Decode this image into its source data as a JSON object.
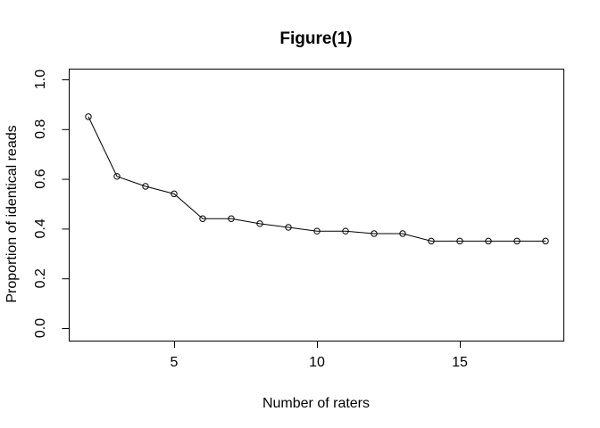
{
  "figure": {
    "background": "#ffffff"
  },
  "chart_data": {
    "type": "line",
    "title": "Figure(1)",
    "xlabel": "Number of raters",
    "ylabel": "Proportion of identical reads",
    "x": [
      2,
      3,
      4,
      5,
      6,
      7,
      8,
      9,
      10,
      11,
      12,
      13,
      14,
      15,
      16,
      17,
      18
    ],
    "y": [
      0.85,
      0.61,
      0.57,
      0.54,
      0.44,
      0.44,
      0.42,
      0.405,
      0.39,
      0.39,
      0.38,
      0.38,
      0.35,
      0.35,
      0.35,
      0.35,
      0.35
    ],
    "x_ticks": [
      5,
      10,
      15
    ],
    "x_tick_labels": [
      "5",
      "10",
      "15"
    ],
    "y_ticks": [
      0.0,
      0.2,
      0.4,
      0.6,
      0.8,
      1.0
    ],
    "y_tick_labels": [
      "0.0",
      "0.2",
      "0.4",
      "0.6",
      "0.8",
      "1.0"
    ],
    "xlim": [
      1.3,
      18.6
    ],
    "ylim": [
      -0.04,
      1.04
    ],
    "grid": false,
    "legend": "none",
    "marker": "open-circle",
    "marker_radius": 3.2,
    "line_color": "#000000",
    "axis_color": "#000000",
    "text_color": "#000000"
  }
}
